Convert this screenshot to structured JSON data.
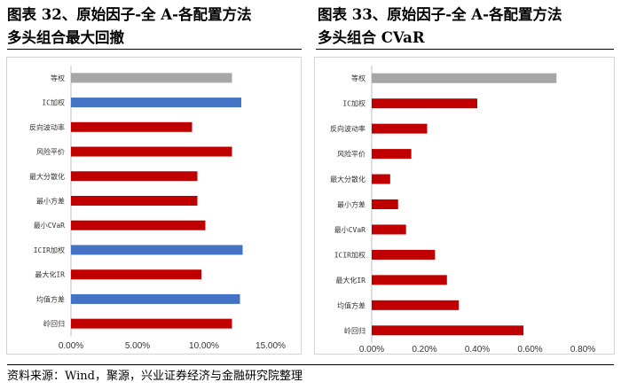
{
  "titles": {
    "left": [
      "图表 32、原始因子-全 A-各配置方法",
      "多头组合最大回撤"
    ],
    "right": [
      "图表 33、原始因子-全 A-各配置方法",
      "多头组合 CVaR"
    ]
  },
  "source": "资料来源：Wind，聚源，兴业证券经济与金融研究院整理",
  "colors": {
    "gray": "#a6a6a6",
    "blue": "#4472c4",
    "red": "#c00000"
  },
  "chart_data": [
    {
      "type": "bar",
      "orientation": "horizontal",
      "categories": [
        "等权",
        "IC加权",
        "反向波动率",
        "风险平价",
        "最大分散化",
        "最小方差",
        "最小CVaR",
        "ICIR加权",
        "最大化IR",
        "均值方差",
        "岭回归"
      ],
      "values": [
        12.1,
        12.8,
        9.1,
        12.1,
        9.5,
        9.5,
        10.1,
        12.9,
        9.8,
        12.7,
        12.1
      ],
      "bar_colors": [
        "gray",
        "blue",
        "red",
        "red",
        "red",
        "red",
        "red",
        "blue",
        "red",
        "blue",
        "red"
      ],
      "xlim": [
        0,
        15
      ],
      "tick_labels": [
        "0.00%",
        "5.00%",
        "10.00%",
        "15.00%"
      ],
      "tick_values": [
        0,
        5,
        10,
        15
      ],
      "grid": false,
      "legend": "none"
    },
    {
      "type": "bar",
      "orientation": "horizontal",
      "categories": [
        "等权",
        "IC加权",
        "反向波动率",
        "风险平价",
        "最大分散化",
        "最小方差",
        "最小CVaR",
        "ICIR加权",
        "最大化IR",
        "均值方差",
        "岭回归"
      ],
      "values": [
        0.7,
        0.4,
        0.21,
        0.15,
        0.07,
        0.1,
        0.13,
        0.24,
        0.285,
        0.33,
        0.575
      ],
      "bar_colors": [
        "gray",
        "red",
        "red",
        "red",
        "red",
        "red",
        "red",
        "red",
        "red",
        "red",
        "red"
      ],
      "xlim": [
        0,
        0.8
      ],
      "tick_labels": [
        "0.00%",
        "0.20%",
        "0.40%",
        "0.60%",
        "0.80%"
      ],
      "tick_values": [
        0,
        0.2,
        0.4,
        0.6,
        0.8
      ],
      "grid": false,
      "legend": "none"
    }
  ]
}
